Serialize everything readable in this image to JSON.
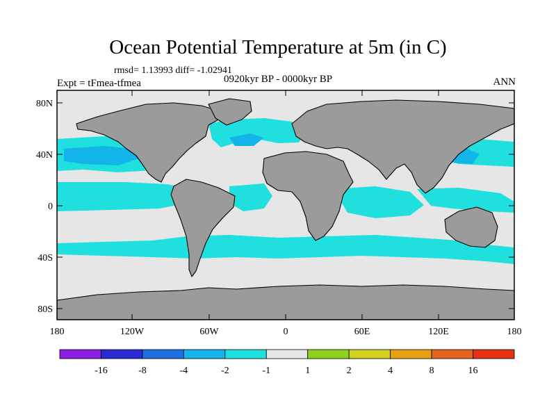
{
  "header": {
    "title": "Ocean Potential Temperature at 5m (in C)",
    "stats": "rmsd= 1.13993  diff= -1.02941",
    "experiment": "Expt = tFmea-tfmea",
    "period": "0920kyr BP - 0000kyr BP",
    "season": "ANN"
  },
  "axes": {
    "lat_ticks": [
      "80N",
      "40N",
      "0",
      "40S",
      "80S"
    ],
    "lon_ticks": [
      "180",
      "120W",
      "60W",
      "0",
      "60E",
      "120E",
      "180"
    ]
  },
  "colorbar": {
    "colors": [
      "#8c1ee6",
      "#2a2ad2",
      "#1f6fe0",
      "#12b4ea",
      "#1fe0de",
      "#e6e6e6",
      "#8cd21e",
      "#d2d21e",
      "#e6a014",
      "#e6641e",
      "#e63214"
    ],
    "labels": [
      "-16",
      "-8",
      "-4",
      "-2",
      "-1",
      "1",
      "2",
      "4",
      "8",
      "16"
    ]
  },
  "palette": {
    "land": "#9b9b9b",
    "ocean_neutral": "#e6e6e6",
    "cool_light": "#1fe0de",
    "cool_mid": "#12b4ea"
  }
}
